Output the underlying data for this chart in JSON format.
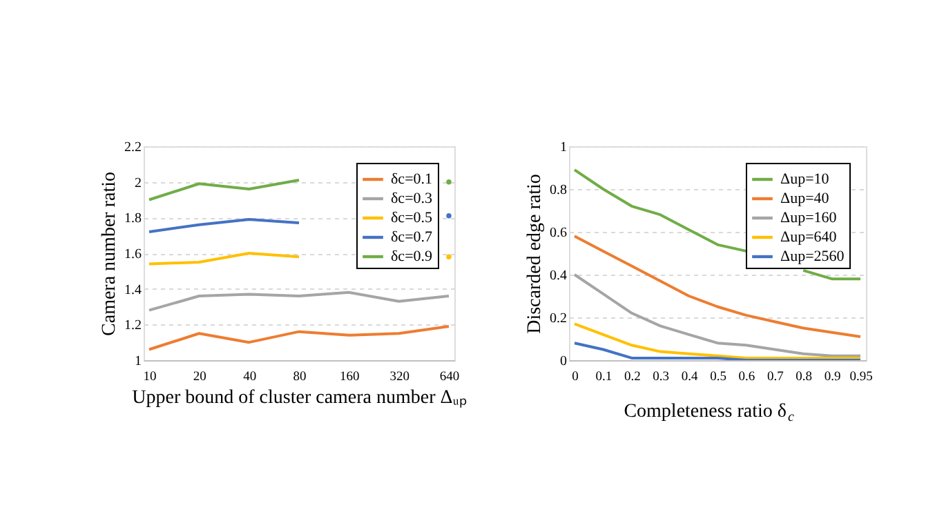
{
  "chart_data": [
    {
      "type": "line",
      "xlabel": "Upper bound of cluster camera number Δᵤₚ",
      "ylabel": "Camera number ratio",
      "categories": [
        "10",
        "20",
        "40",
        "80",
        "160",
        "320",
        "640"
      ],
      "ylim": [
        1,
        2.2
      ],
      "yticks": [
        1,
        1.2,
        1.4,
        1.6,
        1.8,
        2,
        2.2
      ],
      "grid": "y",
      "legend": "top right",
      "series": [
        {
          "name": "δc=0.1",
          "color": "#ed7d31",
          "values": [
            1.06,
            1.15,
            1.1,
            1.16,
            1.14,
            1.15,
            1.19
          ]
        },
        {
          "name": "δc=0.3",
          "color": "#a5a5a5",
          "values": [
            1.28,
            1.36,
            1.37,
            1.36,
            1.38,
            1.33,
            1.36
          ]
        },
        {
          "name": "δc=0.5",
          "color": "#ffc000",
          "values": [
            1.54,
            1.55,
            1.6,
            1.58,
            null,
            null,
            1.58
          ]
        },
        {
          "name": "δc=0.7",
          "color": "#4472c4",
          "values": [
            1.72,
            1.76,
            1.79,
            1.77,
            null,
            null,
            1.81
          ]
        },
        {
          "name": "δc=0.9",
          "color": "#70ad47",
          "values": [
            1.9,
            1.99,
            1.96,
            2.01,
            null,
            null,
            2.0
          ]
        }
      ]
    },
    {
      "type": "line",
      "xlabel": "Completeness ratio δ$_{c}$",
      "ylabel": "Discarded edge ratio",
      "categories": [
        "0",
        "0.1",
        "0.2",
        "0.3",
        "0.4",
        "0.5",
        "0.6",
        "0.7",
        "0.8",
        "0.9",
        "0.95"
      ],
      "ylim": [
        0,
        1
      ],
      "yticks": [
        0,
        0.2,
        0.4,
        0.6,
        0.8,
        1
      ],
      "grid": "y",
      "legend": "top right",
      "series": [
        {
          "name": "Δup=10",
          "color": "#70ad47",
          "values": [
            0.89,
            0.8,
            0.72,
            0.68,
            0.61,
            0.54,
            0.51,
            null,
            0.42,
            0.38,
            0.38
          ]
        },
        {
          "name": "Δup=40",
          "color": "#ed7d31",
          "values": [
            0.58,
            0.51,
            0.44,
            0.37,
            0.3,
            0.25,
            0.21,
            0.18,
            0.15,
            0.13,
            0.11
          ]
        },
        {
          "name": "Δup=160",
          "color": "#a5a5a5",
          "values": [
            0.4,
            0.31,
            0.22,
            0.16,
            0.12,
            0.08,
            0.07,
            0.05,
            0.03,
            0.02,
            0.02
          ]
        },
        {
          "name": "Δup=640",
          "color": "#ffc000",
          "values": [
            0.17,
            0.12,
            0.07,
            0.04,
            0.03,
            0.02,
            0.01,
            0.01,
            0.01,
            0.01,
            0.01
          ]
        },
        {
          "name": "Δup=2560",
          "color": "#4472c4",
          "values": [
            0.08,
            0.05,
            0.01,
            0.01,
            0.01,
            0.01,
            0.0,
            0.0,
            0.0,
            0.0,
            0.0
          ]
        }
      ]
    }
  ]
}
